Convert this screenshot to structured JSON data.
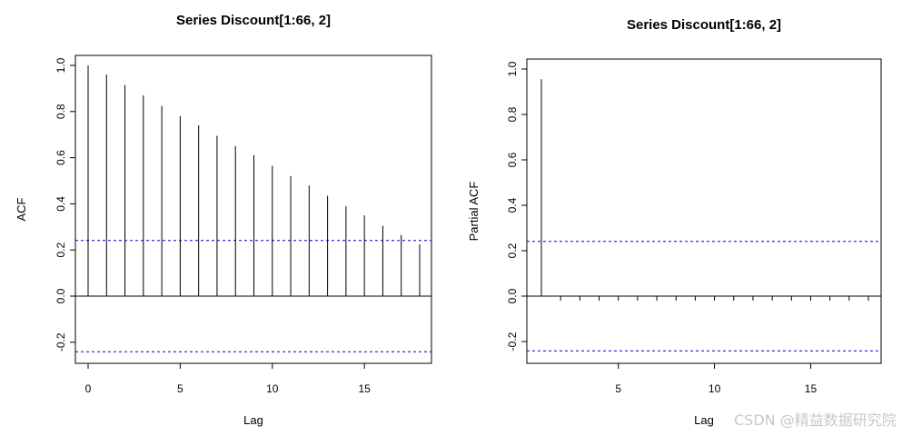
{
  "chart_data": [
    {
      "type": "bar",
      "title": "Series  Discount[1:66, 2]",
      "xlabel": "Lag",
      "ylabel": "ACF",
      "xlim": [
        0,
        18
      ],
      "ylim": [
        -0.28,
        1.0
      ],
      "xticks": [
        0,
        5,
        10,
        15
      ],
      "yticks": [
        -0.2,
        0.0,
        0.2,
        0.4,
        0.6,
        0.8,
        1.0
      ],
      "ytick_labels": [
        "-0.2",
        "0.0",
        "0.2",
        "0.4",
        "0.6",
        "0.8",
        "1.0"
      ],
      "lags": [
        0,
        1,
        2,
        3,
        4,
        5,
        6,
        7,
        8,
        9,
        10,
        11,
        12,
        13,
        14,
        15,
        16,
        17,
        18
      ],
      "values": [
        1.0,
        0.96,
        0.915,
        0.87,
        0.825,
        0.78,
        0.74,
        0.695,
        0.65,
        0.61,
        0.565,
        0.52,
        0.48,
        0.435,
        0.39,
        0.35,
        0.305,
        0.265,
        0.225
      ],
      "confidence_bound": 0.241
    },
    {
      "type": "bar",
      "title": "Series  Discount[1:66, 2]",
      "xlabel": "Lag",
      "ylabel": "Partial ACF",
      "xlim": [
        1,
        18
      ],
      "ylim": [
        -0.28,
        1.0
      ],
      "xticks": [
        5,
        10,
        15
      ],
      "yticks": [
        -0.2,
        0.0,
        0.2,
        0.4,
        0.6,
        0.8,
        1.0
      ],
      "ytick_labels": [
        "-0.2",
        "0.0",
        "0.2",
        "0.4",
        "0.6",
        "0.8",
        "1.0"
      ],
      "lags": [
        1,
        2,
        3,
        4,
        5,
        6,
        7,
        8,
        9,
        10,
        11,
        12,
        13,
        14,
        15,
        16,
        17,
        18
      ],
      "values": [
        0.955,
        -0.02,
        -0.02,
        -0.02,
        -0.02,
        -0.02,
        -0.02,
        -0.02,
        -0.02,
        -0.02,
        -0.02,
        -0.02,
        -0.02,
        -0.02,
        -0.02,
        -0.02,
        -0.02,
        -0.02
      ],
      "confidence_bound": 0.241
    }
  ],
  "watermark": "CSDN @精益数据研究院"
}
